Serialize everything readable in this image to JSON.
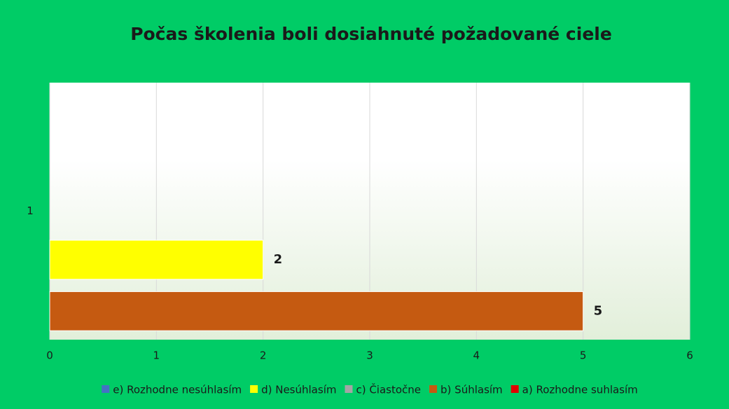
{
  "chart_data": {
    "type": "bar",
    "orientation": "horizontal",
    "title": "Počas školenia boli dosiahnuté požadované ciele",
    "categories": [
      "1"
    ],
    "series": [
      {
        "name": "e) Rozhodne nesúhlasím",
        "color": "#4472c4",
        "values": [
          null
        ]
      },
      {
        "name": "d) Nesúhlasím",
        "color": "#ffff00",
        "values": [
          2
        ]
      },
      {
        "name": "c) Čiastočne",
        "color": "#a5a5a5",
        "values": [
          null
        ]
      },
      {
        "name": "b) Súhlasím",
        "color": "#c55a11",
        "values": [
          5
        ]
      },
      {
        "name": "a) Rozhodne suhlasím",
        "color": "#e00000",
        "values": [
          null
        ]
      }
    ],
    "xlim": [
      0,
      6
    ],
    "xticks": [
      0,
      1,
      2,
      3,
      4,
      5,
      6
    ],
    "grid": true,
    "legend": "bottom",
    "background": "#00cc66"
  }
}
